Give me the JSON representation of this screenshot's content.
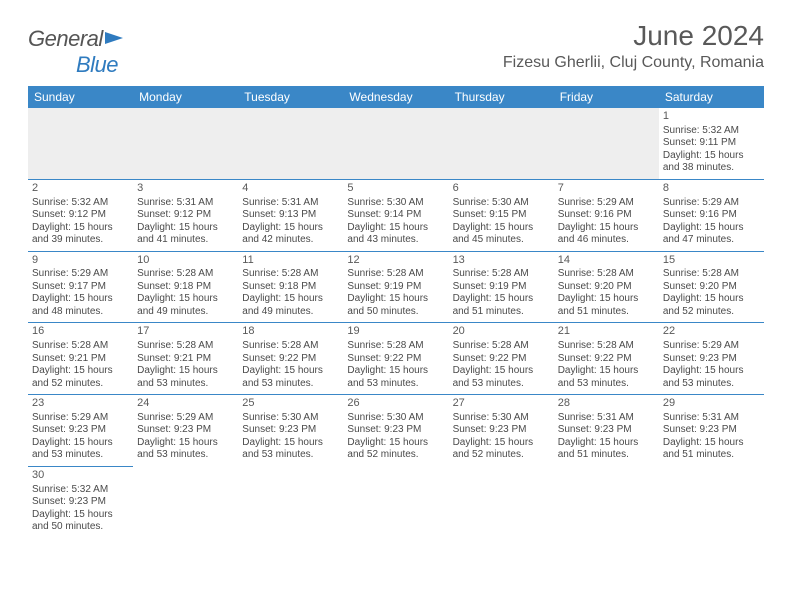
{
  "logo": {
    "text1": "General",
    "text2": "Blue"
  },
  "title": "June 2024",
  "location": "Fizesu Gherlii, Cluj County, Romania",
  "colors": {
    "header_bg": "#3a87c7",
    "header_text": "#ffffff",
    "cell_border": "#3a87c7",
    "text": "#4a4a4a",
    "title_text": "#595959",
    "logo_gray": "#555555",
    "logo_blue": "#2f7bbf",
    "firstrow_bg": "#eeeeee"
  },
  "weekdays": [
    "Sunday",
    "Monday",
    "Tuesday",
    "Wednesday",
    "Thursday",
    "Friday",
    "Saturday"
  ],
  "weeks": [
    [
      null,
      null,
      null,
      null,
      null,
      null,
      {
        "n": "1",
        "sr": "Sunrise: 5:32 AM",
        "ss": "Sunset: 9:11 PM",
        "d1": "Daylight: 15 hours",
        "d2": "and 38 minutes."
      }
    ],
    [
      {
        "n": "2",
        "sr": "Sunrise: 5:32 AM",
        "ss": "Sunset: 9:12 PM",
        "d1": "Daylight: 15 hours",
        "d2": "and 39 minutes."
      },
      {
        "n": "3",
        "sr": "Sunrise: 5:31 AM",
        "ss": "Sunset: 9:12 PM",
        "d1": "Daylight: 15 hours",
        "d2": "and 41 minutes."
      },
      {
        "n": "4",
        "sr": "Sunrise: 5:31 AM",
        "ss": "Sunset: 9:13 PM",
        "d1": "Daylight: 15 hours",
        "d2": "and 42 minutes."
      },
      {
        "n": "5",
        "sr": "Sunrise: 5:30 AM",
        "ss": "Sunset: 9:14 PM",
        "d1": "Daylight: 15 hours",
        "d2": "and 43 minutes."
      },
      {
        "n": "6",
        "sr": "Sunrise: 5:30 AM",
        "ss": "Sunset: 9:15 PM",
        "d1": "Daylight: 15 hours",
        "d2": "and 45 minutes."
      },
      {
        "n": "7",
        "sr": "Sunrise: 5:29 AM",
        "ss": "Sunset: 9:16 PM",
        "d1": "Daylight: 15 hours",
        "d2": "and 46 minutes."
      },
      {
        "n": "8",
        "sr": "Sunrise: 5:29 AM",
        "ss": "Sunset: 9:16 PM",
        "d1": "Daylight: 15 hours",
        "d2": "and 47 minutes."
      }
    ],
    [
      {
        "n": "9",
        "sr": "Sunrise: 5:29 AM",
        "ss": "Sunset: 9:17 PM",
        "d1": "Daylight: 15 hours",
        "d2": "and 48 minutes."
      },
      {
        "n": "10",
        "sr": "Sunrise: 5:28 AM",
        "ss": "Sunset: 9:18 PM",
        "d1": "Daylight: 15 hours",
        "d2": "and 49 minutes."
      },
      {
        "n": "11",
        "sr": "Sunrise: 5:28 AM",
        "ss": "Sunset: 9:18 PM",
        "d1": "Daylight: 15 hours",
        "d2": "and 49 minutes."
      },
      {
        "n": "12",
        "sr": "Sunrise: 5:28 AM",
        "ss": "Sunset: 9:19 PM",
        "d1": "Daylight: 15 hours",
        "d2": "and 50 minutes."
      },
      {
        "n": "13",
        "sr": "Sunrise: 5:28 AM",
        "ss": "Sunset: 9:19 PM",
        "d1": "Daylight: 15 hours",
        "d2": "and 51 minutes."
      },
      {
        "n": "14",
        "sr": "Sunrise: 5:28 AM",
        "ss": "Sunset: 9:20 PM",
        "d1": "Daylight: 15 hours",
        "d2": "and 51 minutes."
      },
      {
        "n": "15",
        "sr": "Sunrise: 5:28 AM",
        "ss": "Sunset: 9:20 PM",
        "d1": "Daylight: 15 hours",
        "d2": "and 52 minutes."
      }
    ],
    [
      {
        "n": "16",
        "sr": "Sunrise: 5:28 AM",
        "ss": "Sunset: 9:21 PM",
        "d1": "Daylight: 15 hours",
        "d2": "and 52 minutes."
      },
      {
        "n": "17",
        "sr": "Sunrise: 5:28 AM",
        "ss": "Sunset: 9:21 PM",
        "d1": "Daylight: 15 hours",
        "d2": "and 53 minutes."
      },
      {
        "n": "18",
        "sr": "Sunrise: 5:28 AM",
        "ss": "Sunset: 9:22 PM",
        "d1": "Daylight: 15 hours",
        "d2": "and 53 minutes."
      },
      {
        "n": "19",
        "sr": "Sunrise: 5:28 AM",
        "ss": "Sunset: 9:22 PM",
        "d1": "Daylight: 15 hours",
        "d2": "and 53 minutes."
      },
      {
        "n": "20",
        "sr": "Sunrise: 5:28 AM",
        "ss": "Sunset: 9:22 PM",
        "d1": "Daylight: 15 hours",
        "d2": "and 53 minutes."
      },
      {
        "n": "21",
        "sr": "Sunrise: 5:28 AM",
        "ss": "Sunset: 9:22 PM",
        "d1": "Daylight: 15 hours",
        "d2": "and 53 minutes."
      },
      {
        "n": "22",
        "sr": "Sunrise: 5:29 AM",
        "ss": "Sunset: 9:23 PM",
        "d1": "Daylight: 15 hours",
        "d2": "and 53 minutes."
      }
    ],
    [
      {
        "n": "23",
        "sr": "Sunrise: 5:29 AM",
        "ss": "Sunset: 9:23 PM",
        "d1": "Daylight: 15 hours",
        "d2": "and 53 minutes."
      },
      {
        "n": "24",
        "sr": "Sunrise: 5:29 AM",
        "ss": "Sunset: 9:23 PM",
        "d1": "Daylight: 15 hours",
        "d2": "and 53 minutes."
      },
      {
        "n": "25",
        "sr": "Sunrise: 5:30 AM",
        "ss": "Sunset: 9:23 PM",
        "d1": "Daylight: 15 hours",
        "d2": "and 53 minutes."
      },
      {
        "n": "26",
        "sr": "Sunrise: 5:30 AM",
        "ss": "Sunset: 9:23 PM",
        "d1": "Daylight: 15 hours",
        "d2": "and 52 minutes."
      },
      {
        "n": "27",
        "sr": "Sunrise: 5:30 AM",
        "ss": "Sunset: 9:23 PM",
        "d1": "Daylight: 15 hours",
        "d2": "and 52 minutes."
      },
      {
        "n": "28",
        "sr": "Sunrise: 5:31 AM",
        "ss": "Sunset: 9:23 PM",
        "d1": "Daylight: 15 hours",
        "d2": "and 51 minutes."
      },
      {
        "n": "29",
        "sr": "Sunrise: 5:31 AM",
        "ss": "Sunset: 9:23 PM",
        "d1": "Daylight: 15 hours",
        "d2": "and 51 minutes."
      }
    ],
    [
      {
        "n": "30",
        "sr": "Sunrise: 5:32 AM",
        "ss": "Sunset: 9:23 PM",
        "d1": "Daylight: 15 hours",
        "d2": "and 50 minutes."
      },
      null,
      null,
      null,
      null,
      null,
      null
    ]
  ]
}
